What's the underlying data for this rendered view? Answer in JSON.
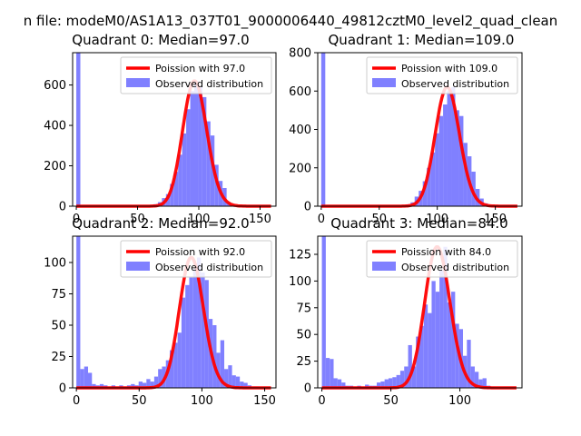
{
  "figure": {
    "suptitle": "n file: modeM0/AS1A13_037T01_9000006440_49812cztM0_level2_quad_clean"
  },
  "style": {
    "hist_color": "#8080ff",
    "poisson_color": "#ff0000"
  },
  "chart_data": [
    {
      "type": "bar",
      "title": "Quadrant 0: Median=97.0",
      "median": 97.0,
      "xlim": [
        -3,
        163
      ],
      "ylim": [
        0,
        760
      ],
      "xticks": [
        0,
        50,
        100,
        150
      ],
      "yticks": [
        0,
        200,
        400,
        600
      ],
      "bin_width": 3.3,
      "series": [
        {
          "name": "Observed distribution",
          "x": [
            0,
            60,
            63.3,
            66.6,
            69.9,
            73.2,
            76.5,
            79.8,
            83.1,
            86.4,
            89.7,
            93.0,
            96.3,
            99.6,
            102.9,
            106.2,
            109.5,
            112.8,
            116.1,
            119.4,
            122.7,
            126.0
          ],
          "values": [
            760,
            5,
            10,
            20,
            40,
            60,
            110,
            170,
            255,
            360,
            480,
            570,
            620,
            590,
            540,
            420,
            350,
            205,
            125,
            90,
            20,
            10
          ]
        },
        {
          "name": "Poission with 97.0",
          "lambda": 97.0
        }
      ],
      "legend": [
        "Poission with 97.0",
        "Observed distribution"
      ],
      "legend_position": "upper right"
    },
    {
      "type": "bar",
      "title": "Quadrant 1: Median=109.0",
      "median": 109.0,
      "xlim": [
        -3,
        173
      ],
      "ylim": [
        0,
        800
      ],
      "xticks": [
        0,
        50,
        100,
        150
      ],
      "yticks": [
        0,
        200,
        400,
        600,
        800
      ],
      "bin_width": 3.5,
      "series": [
        {
          "name": "Observed distribution",
          "x": [
            0,
            70,
            73.5,
            77,
            80.5,
            84,
            87.5,
            91,
            94.5,
            98,
            101.5,
            105,
            108.5,
            112,
            115.5,
            119,
            122.5,
            126,
            129.5,
            133,
            136.5,
            140
          ],
          "values": [
            800,
            5,
            10,
            20,
            50,
            80,
            130,
            200,
            280,
            380,
            470,
            530,
            600,
            620,
            500,
            470,
            330,
            260,
            180,
            90,
            40,
            15
          ]
        },
        {
          "name": "Poission with 109.0",
          "lambda": 109.0
        }
      ],
      "legend": [
        "Poission with 109.0",
        "Observed distribution"
      ],
      "legend_position": "upper right"
    },
    {
      "type": "bar",
      "title": "Quadrant 2: Median=92.0",
      "median": 92.0,
      "xlim": [
        -3,
        159
      ],
      "ylim": [
        0,
        121
      ],
      "xticks": [
        0,
        50,
        100,
        150
      ],
      "yticks": [
        0,
        25,
        50,
        75,
        100
      ],
      "bin_width": 3.1,
      "series": [
        {
          "name": "Observed distribution",
          "x": [
            0,
            3.1,
            6.2,
            9.3,
            12.4,
            15.5,
            18.6,
            21.7,
            24.8,
            27.9,
            31.0,
            34.1,
            37.2,
            40.3,
            43.4,
            46.5,
            49.6,
            52.7,
            55.8,
            58.9,
            62.0,
            65.1,
            68.2,
            71.3,
            74.4,
            77.5,
            80.6,
            83.7,
            86.8,
            89.9,
            93.0,
            96.1,
            99.2,
            102.3,
            105.4,
            108.5,
            111.6,
            114.7,
            117.8,
            120.9,
            124.0,
            127.1,
            130.2,
            133.3,
            136.4,
            139.5,
            142.6
          ],
          "values": [
            121,
            15,
            17,
            12,
            3,
            2,
            3,
            2,
            1,
            2,
            1,
            2,
            1,
            2,
            3,
            2,
            5,
            4,
            7,
            5,
            9,
            15,
            17,
            22,
            30,
            36,
            44,
            72,
            82,
            88,
            96,
            104,
            92,
            86,
            55,
            50,
            28,
            38,
            15,
            18,
            10,
            9,
            5,
            4,
            2,
            1,
            1
          ]
        },
        {
          "name": "Poission with 92.0",
          "lambda": 92.0
        }
      ],
      "legend": [
        "Poission with 92.0",
        "Observed distribution"
      ],
      "legend_position": "upper right"
    },
    {
      "type": "bar",
      "title": "Quadrant 3: Median=84.0",
      "median": 84.0,
      "xlim": [
        -3,
        145
      ],
      "ylim": [
        0,
        142
      ],
      "xticks": [
        0,
        50,
        100
      ],
      "yticks": [
        0,
        25,
        50,
        75,
        100,
        125
      ],
      "bin_width": 2.84,
      "series": [
        {
          "name": "Observed distribution",
          "x": [
            0,
            2.84,
            5.68,
            8.52,
            11.36,
            14.2,
            17.04,
            19.88,
            22.72,
            25.56,
            28.4,
            31.24,
            34.08,
            36.92,
            39.76,
            42.6,
            45.44,
            48.28,
            51.12,
            53.96,
            56.8,
            59.64,
            62.48,
            65.32,
            68.16,
            71.0,
            73.84,
            76.68,
            79.52,
            82.36,
            85.2,
            88.04,
            90.88,
            93.72,
            96.56,
            99.4,
            102.24,
            105.08,
            107.92,
            110.76,
            113.6,
            116.44,
            119.28,
            122.12
          ],
          "values": [
            142,
            28,
            27,
            9,
            8,
            5,
            2,
            2,
            1,
            2,
            1,
            3,
            2,
            2,
            5,
            6,
            8,
            9,
            10,
            12,
            16,
            20,
            40,
            20,
            48,
            58,
            78,
            70,
            100,
            90,
            110,
            132,
            80,
            90,
            60,
            55,
            30,
            45,
            20,
            15,
            8,
            9,
            2,
            1
          ]
        },
        {
          "name": "Poission with 84.0",
          "lambda": 84.0
        }
      ],
      "legend": [
        "Poission with 84.0",
        "Observed distribution"
      ],
      "legend_position": "upper right"
    }
  ]
}
